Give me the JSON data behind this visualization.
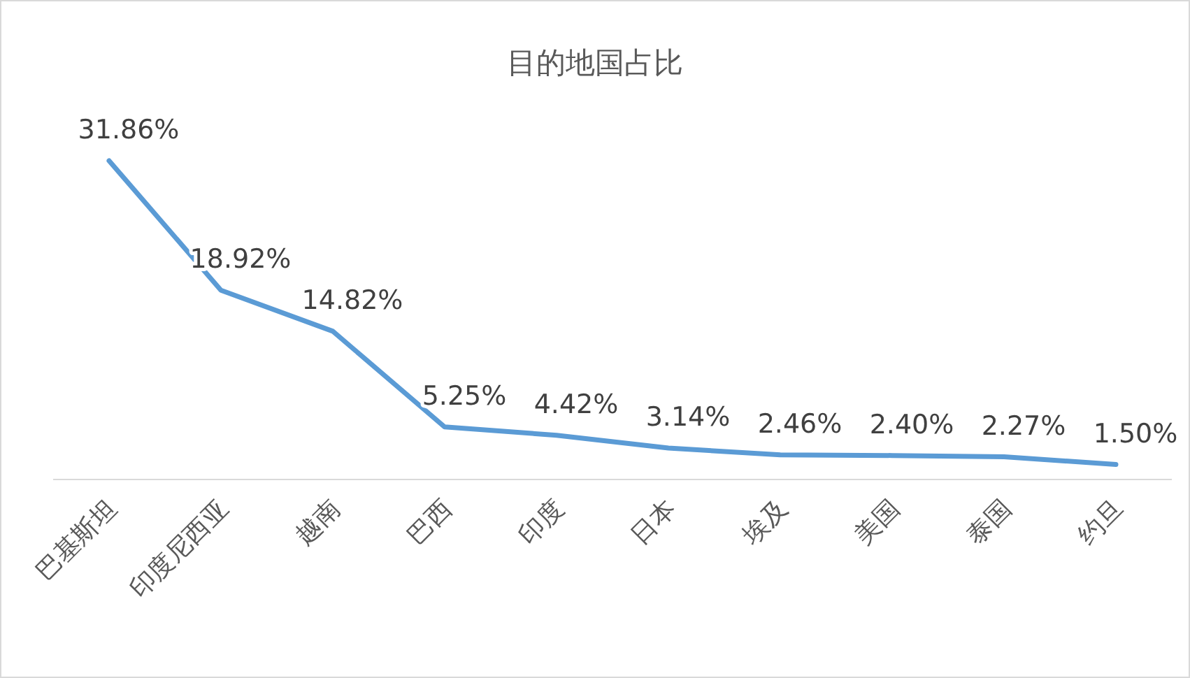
{
  "chart_data": {
    "type": "line",
    "title": "目的地国占比",
    "categories": [
      "巴基斯坦",
      "印度尼西亚",
      "越南",
      "巴西",
      "印度",
      "日本",
      "埃及",
      "美国",
      "泰国",
      "约旦"
    ],
    "values": [
      31.86,
      18.92,
      14.82,
      5.25,
      4.42,
      3.14,
      2.46,
      2.4,
      2.27,
      1.5
    ],
    "value_labels": [
      "31.86%",
      "18.92%",
      "14.82%",
      "5.25%",
      "4.42%",
      "3.14%",
      "2.46%",
      "2.40%",
      "2.27%",
      "1.50%"
    ],
    "color": "#5b9bd5"
  }
}
